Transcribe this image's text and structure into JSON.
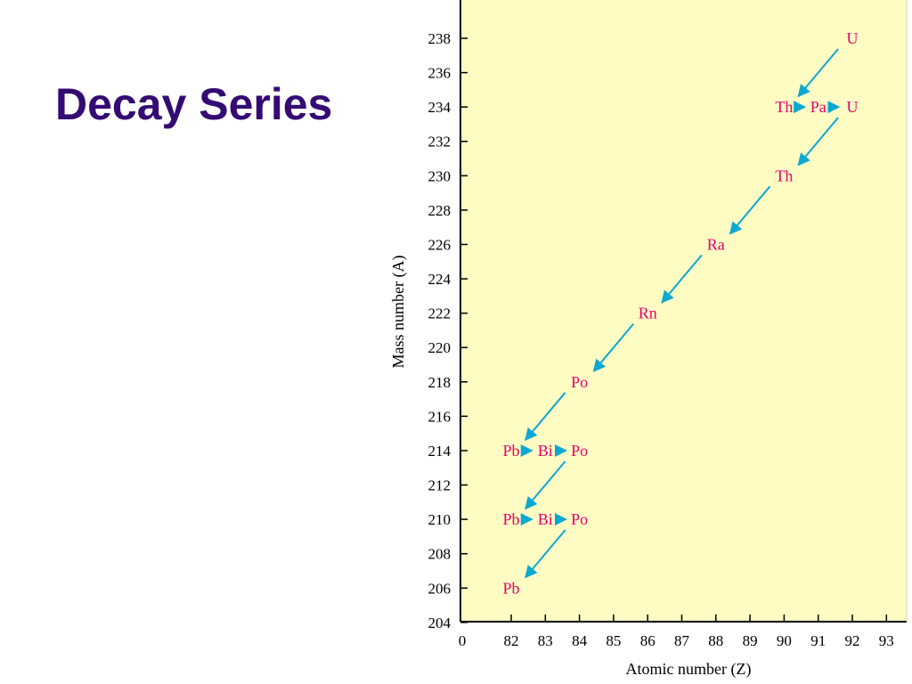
{
  "slide": {
    "title": "Decay Series"
  },
  "colors": {
    "plot_bg": "#fefcc3",
    "nuclide_text": "#e8006e",
    "arrow": "#0ba8d2",
    "axis": "#000000",
    "title": "#330b73"
  },
  "chart_data": {
    "type": "scatter",
    "xlabel": "Atomic number (Z)",
    "ylabel": "Mass number (A)",
    "x_ticks": [
      "0",
      "82",
      "83",
      "84",
      "85",
      "86",
      "87",
      "88",
      "89",
      "90",
      "91",
      "92",
      "93"
    ],
    "y_ticks": [
      204,
      206,
      208,
      210,
      212,
      214,
      216,
      218,
      220,
      222,
      224,
      226,
      228,
      230,
      232,
      234,
      236,
      238
    ],
    "ylim": [
      204,
      240
    ],
    "xlim": [
      81,
      94
    ],
    "x_axis_break": "0 shown at origin before 82",
    "grid": false,
    "nuclides": [
      {
        "label": "U",
        "z": 92,
        "a": 238
      },
      {
        "label": "Th",
        "z": 90,
        "a": 234
      },
      {
        "label": "Pa",
        "z": 91,
        "a": 234
      },
      {
        "label": "U",
        "z": 92,
        "a": 234
      },
      {
        "label": "Th",
        "z": 90,
        "a": 230
      },
      {
        "label": "Ra",
        "z": 88,
        "a": 226
      },
      {
        "label": "Rn",
        "z": 86,
        "a": 222
      },
      {
        "label": "Po",
        "z": 84,
        "a": 218
      },
      {
        "label": "Pb",
        "z": 82,
        "a": 214
      },
      {
        "label": "Bi",
        "z": 83,
        "a": 214
      },
      {
        "label": "Po",
        "z": 84,
        "a": 214
      },
      {
        "label": "Pb",
        "z": 82,
        "a": 210
      },
      {
        "label": "Bi",
        "z": 83,
        "a": 210
      },
      {
        "label": "Po",
        "z": 84,
        "a": 210
      },
      {
        "label": "Pb",
        "z": 82,
        "a": 206
      }
    ],
    "alpha_decays": [
      [
        0,
        1
      ],
      [
        3,
        4
      ],
      [
        4,
        5
      ],
      [
        5,
        6
      ],
      [
        6,
        7
      ],
      [
        7,
        8
      ],
      [
        10,
        11
      ],
      [
        13,
        14
      ]
    ],
    "beta_decays": [
      [
        1,
        2
      ],
      [
        2,
        3
      ],
      [
        8,
        9
      ],
      [
        9,
        10
      ],
      [
        11,
        12
      ],
      [
        12,
        13
      ]
    ]
  }
}
